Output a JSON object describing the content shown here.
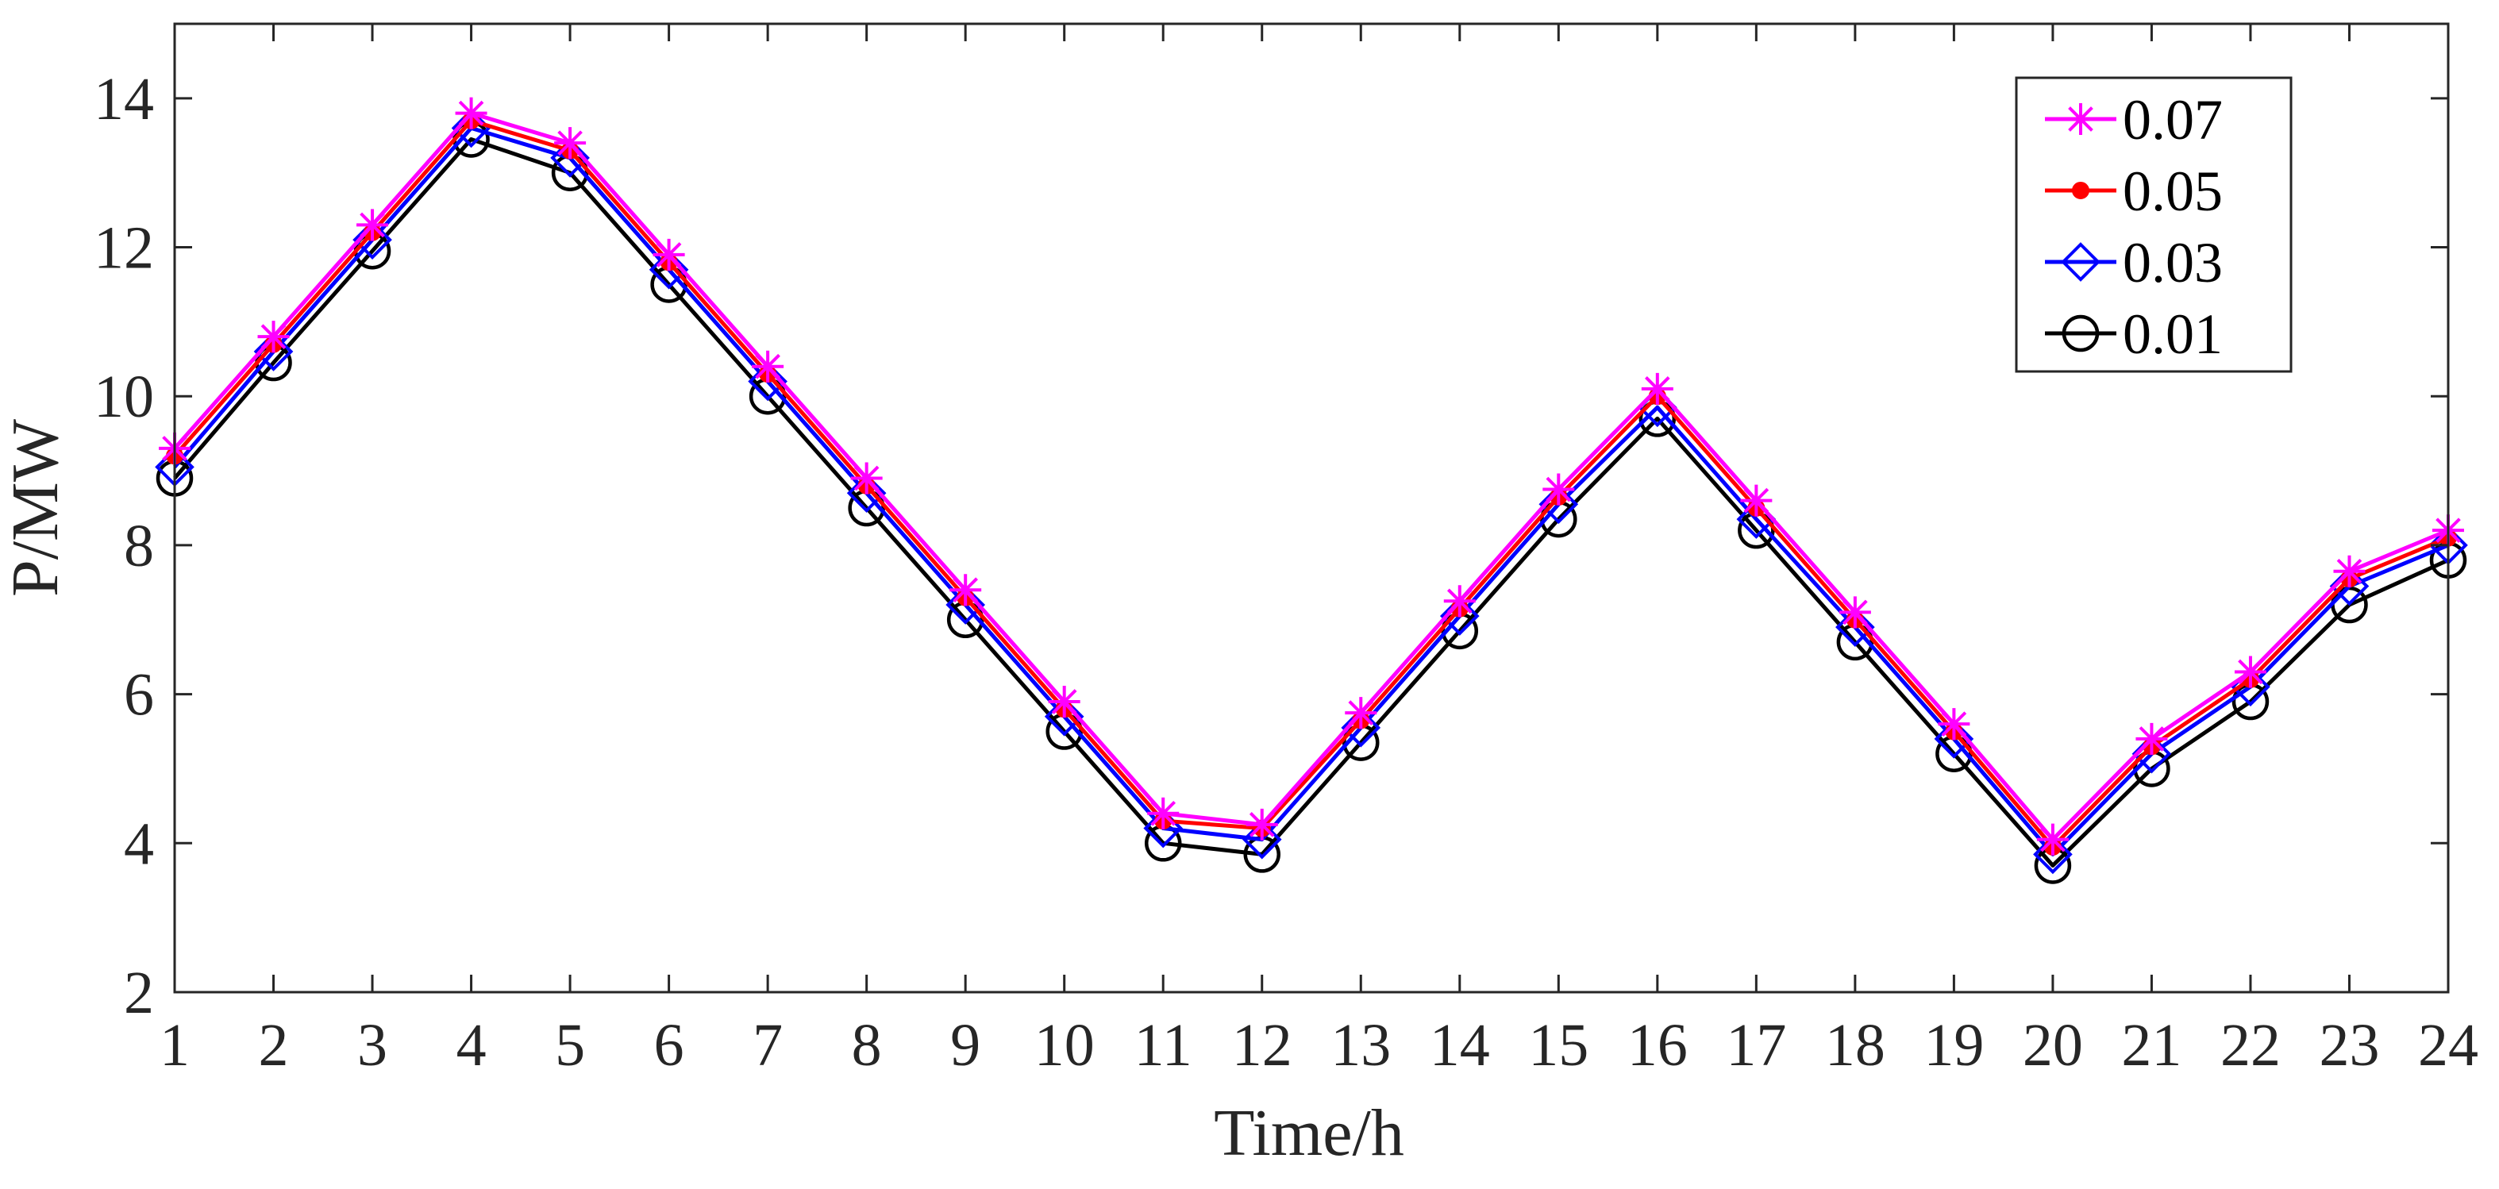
{
  "chart_data": {
    "type": "line",
    "title": "",
    "xlabel": "Time/h",
    "ylabel": "P/MW",
    "xlim": [
      1,
      24
    ],
    "ylim": [
      2,
      15
    ],
    "xticks": [
      1,
      2,
      3,
      4,
      5,
      6,
      7,
      8,
      9,
      10,
      11,
      12,
      13,
      14,
      15,
      16,
      17,
      18,
      19,
      20,
      21,
      22,
      23,
      24
    ],
    "yticks": [
      2,
      4,
      6,
      8,
      10,
      12,
      14
    ],
    "grid": false,
    "legend_position": "top-right",
    "x": [
      1,
      2,
      3,
      4,
      5,
      6,
      7,
      8,
      9,
      10,
      11,
      12,
      13,
      14,
      15,
      16,
      17,
      18,
      19,
      20,
      21,
      22,
      23,
      24
    ],
    "series": [
      {
        "name": "0.07",
        "color": "#ff00ff",
        "marker": "asterisk",
        "values": [
          9.3,
          10.8,
          12.3,
          13.8,
          13.4,
          11.9,
          10.4,
          8.9,
          7.4,
          5.9,
          4.4,
          4.25,
          5.75,
          7.25,
          8.75,
          10.1,
          8.6,
          7.1,
          5.6,
          4.05,
          5.4,
          6.3,
          7.65,
          8.2
        ]
      },
      {
        "name": "0.05",
        "color": "#ff0000",
        "marker": "dot",
        "values": [
          9.2,
          10.7,
          12.2,
          13.7,
          13.3,
          11.8,
          10.3,
          8.8,
          7.3,
          5.8,
          4.3,
          4.2,
          5.65,
          7.15,
          8.65,
          10.0,
          8.5,
          7.0,
          5.5,
          3.95,
          5.3,
          6.2,
          7.55,
          8.1
        ]
      },
      {
        "name": "0.03",
        "color": "#0000ff",
        "marker": "diamond",
        "values": [
          9.05,
          10.6,
          12.1,
          13.6,
          13.2,
          11.7,
          10.2,
          8.7,
          7.2,
          5.7,
          4.2,
          4.05,
          5.55,
          7.05,
          8.55,
          9.85,
          8.35,
          6.9,
          5.4,
          3.85,
          5.2,
          6.1,
          7.45,
          8.0
        ]
      },
      {
        "name": "0.01",
        "color": "#000000",
        "marker": "circle",
        "values": [
          8.9,
          10.45,
          11.95,
          13.45,
          13.0,
          11.5,
          10.0,
          8.5,
          7.0,
          5.5,
          4.0,
          3.85,
          5.35,
          6.85,
          8.35,
          9.7,
          8.2,
          6.7,
          5.2,
          3.7,
          5.0,
          5.9,
          7.2,
          7.8
        ]
      }
    ]
  }
}
